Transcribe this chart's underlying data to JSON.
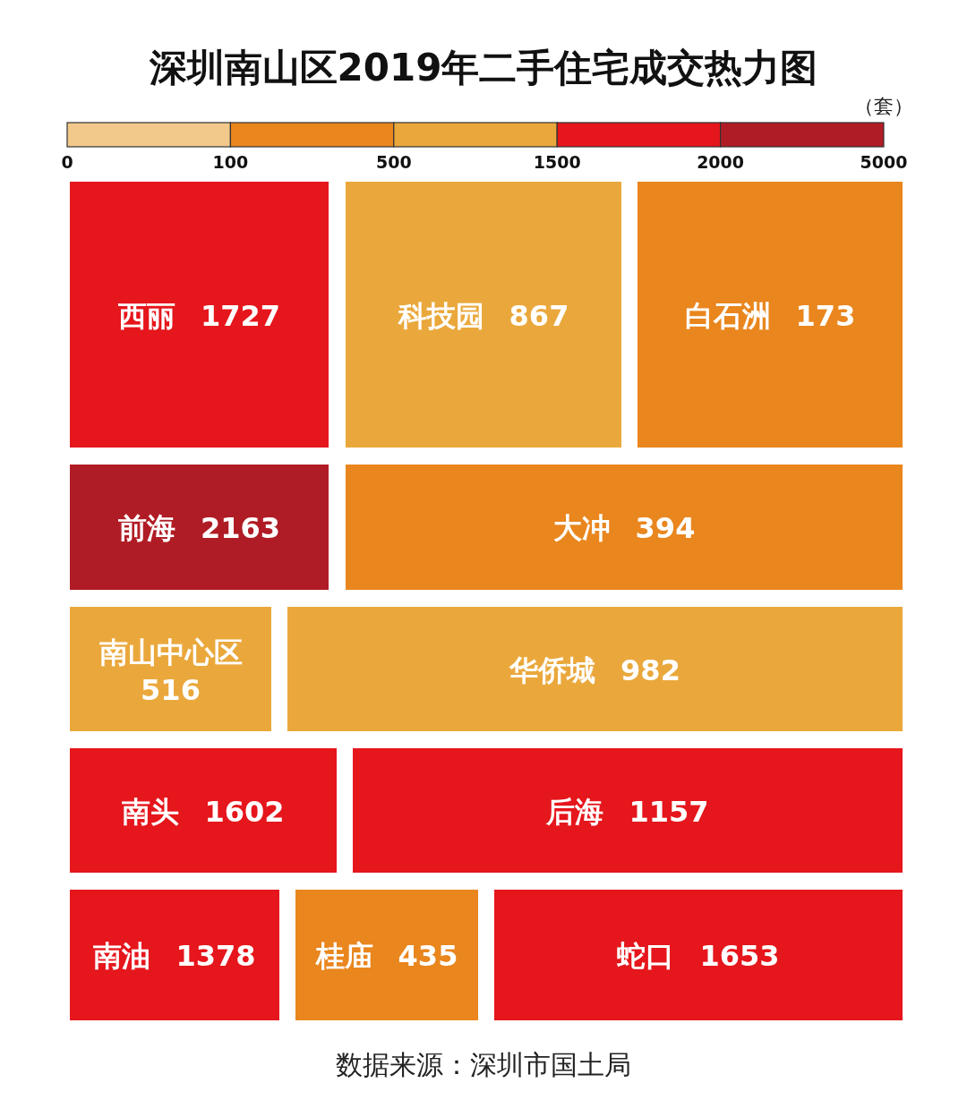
{
  "chart_data": [
    {
      "type": "other",
      "title": "深圳南山区2019年二手住宅成交热力图",
      "clabel": "（套）",
      "categories": [
        null,
        null,
        null,
        null,
        null
      ],
      "colors": [
        "#f2c98b",
        "#e9861e",
        "#eaa83c",
        "#e5161c",
        "#b01c25"
      ],
      "annotations": [
        "0",
        "100",
        "500",
        "1500",
        "2000",
        "5000"
      ]
    },
    {
      "type": "other",
      "categories": [
        "西丽",
        "科技园",
        "白石洲",
        "前海",
        "大冲",
        "南山中心区",
        "华侨城",
        "南头",
        "后海",
        "南油",
        "桂庙",
        "蛇口"
      ],
      "values": [
        1727,
        867,
        173,
        2163,
        394,
        516,
        982,
        1602,
        1157,
        1378,
        435,
        1653
      ],
      "colors": [
        "#e5161c",
        "#eaa83c",
        "#e9861e",
        "#b01c25",
        "#e9861e",
        "#eaa83c",
        "#eaa83c",
        "#e5161c",
        "#e5161c",
        "#e5161c",
        "#e9861e",
        "#e5161c"
      ],
      "data_labels": true,
      "annotations": [
        "数据来源：深圳市国土局"
      ]
    }
  ]
}
